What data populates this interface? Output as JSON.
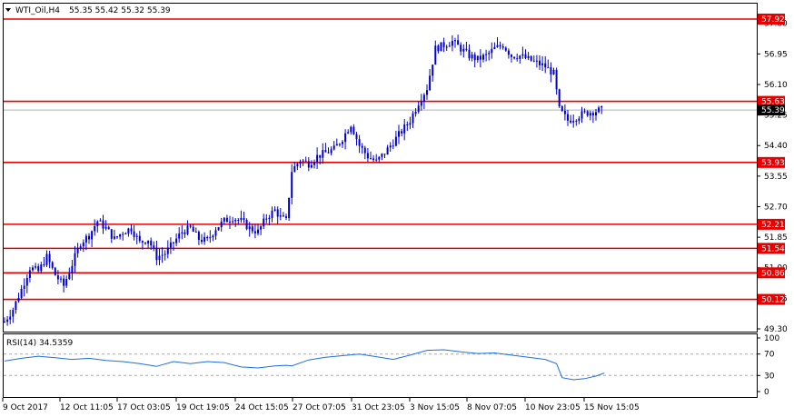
{
  "header": {
    "symbol": "WTI_Oil,H4",
    "ohlc": "55.35 55.42 55.32 55.39",
    "menu_icon": "triangle-down-icon"
  },
  "colors": {
    "candle": "#0000cc",
    "level_line": "#e60000",
    "level_tag": "#e60000",
    "current_tag": "#000000",
    "rsi_line": "#1f6fe0",
    "rsi_level": "#a9a9a9",
    "frame": "#000000"
  },
  "chart_data": [
    {
      "type": "candlestick",
      "title": "",
      "symbol": "WTI_Oil",
      "timeframe": "H4",
      "ylim": [
        49.1,
        58.1
      ],
      "y_ticks": [
        "57.80",
        "56.95",
        "56.10",
        "55.25",
        "54.40",
        "53.55",
        "52.70",
        "51.85",
        "51.00",
        "50.15",
        "49.30"
      ],
      "x_labels": [
        "9 Oct 2017",
        "12 Oct 11:05",
        "17 Oct 03:05",
        "19 Oct 19:05",
        "24 Oct 15:05",
        "27 Oct 07:05",
        "31 Oct 23:05",
        "3 Nov 15:05",
        "8 Nov 07:05",
        "10 Nov 23:05",
        "15 Nov 15:05"
      ],
      "horizontal_levels": [
        57.92,
        55.63,
        53.93,
        52.21,
        51.54,
        50.86,
        50.12
      ],
      "level_labels": [
        "57.92",
        "55.63",
        "53.93",
        "52.21",
        "51.54",
        "50.86",
        "50.12"
      ],
      "current_price": 55.39,
      "current_label": "55.39",
      "close_path": [
        [
          0,
          49.5
        ],
        [
          3,
          49.85
        ],
        [
          6,
          50.4
        ],
        [
          9,
          51.0
        ],
        [
          12,
          50.9
        ],
        [
          15,
          51.3
        ],
        [
          18,
          50.8
        ],
        [
          21,
          50.5
        ],
        [
          24,
          51.1
        ],
        [
          27,
          51.7
        ],
        [
          30,
          51.9
        ],
        [
          33,
          52.3
        ],
        [
          36,
          52.1
        ],
        [
          39,
          51.8
        ],
        [
          42,
          52.0
        ],
        [
          45,
          52.1
        ],
        [
          48,
          51.7
        ],
        [
          51,
          51.8
        ],
        [
          54,
          51.3
        ],
        [
          57,
          51.4
        ],
        [
          60,
          51.7
        ],
        [
          63,
          52.0
        ],
        [
          66,
          52.1
        ],
        [
          69,
          51.8
        ],
        [
          72,
          51.75
        ],
        [
          75,
          52.1
        ],
        [
          78,
          52.3
        ],
        [
          81,
          52.4
        ],
        [
          84,
          52.3
        ],
        [
          87,
          52.1
        ],
        [
          90,
          52.0
        ],
        [
          93,
          52.4
        ],
        [
          96,
          52.6
        ],
        [
          98,
          52.4
        ],
        [
          100,
          52.3
        ],
        [
          102,
          53.7
        ],
        [
          105,
          54.0
        ],
        [
          108,
          53.9
        ],
        [
          111,
          54.1
        ],
        [
          114,
          54.2
        ],
        [
          117,
          54.3
        ],
        [
          120,
          54.6
        ],
        [
          123,
          55.0
        ],
        [
          126,
          54.4
        ],
        [
          129,
          54.1
        ],
        [
          132,
          53.95
        ],
        [
          135,
          54.2
        ],
        [
          138,
          54.5
        ],
        [
          141,
          54.8
        ],
        [
          144,
          55.1
        ],
        [
          147,
          55.6
        ],
        [
          150,
          56.0
        ],
        [
          153,
          57.1
        ],
        [
          156,
          57.2
        ],
        [
          159,
          57.3
        ],
        [
          162,
          57.1
        ],
        [
          165,
          56.9
        ],
        [
          168,
          56.8
        ],
        [
          171,
          56.9
        ],
        [
          174,
          57.1
        ],
        [
          177,
          57.2
        ],
        [
          180,
          56.9
        ],
        [
          183,
          56.9
        ],
        [
          186,
          56.8
        ],
        [
          189,
          56.7
        ],
        [
          192,
          56.6
        ],
        [
          195,
          56.4
        ],
        [
          197,
          55.4
        ],
        [
          200,
          55.1
        ],
        [
          203,
          55.2
        ],
        [
          206,
          55.3
        ],
        [
          209,
          55.35
        ],
        [
          212,
          55.39
        ]
      ]
    },
    {
      "type": "line",
      "title": "",
      "label_name": "RSI(14)",
      "label_value": "34.5359",
      "ylim": [
        0,
        100
      ],
      "y_ticks": [
        "100",
        "70",
        "30",
        "0"
      ],
      "levels": [
        70,
        30
      ],
      "points": [
        [
          0,
          57
        ],
        [
          6,
          62
        ],
        [
          12,
          66
        ],
        [
          18,
          63
        ],
        [
          24,
          60
        ],
        [
          30,
          62
        ],
        [
          36,
          58
        ],
        [
          42,
          56
        ],
        [
          48,
          52
        ],
        [
          54,
          47
        ],
        [
          60,
          56
        ],
        [
          66,
          52
        ],
        [
          72,
          56
        ],
        [
          78,
          54
        ],
        [
          84,
          46
        ],
        [
          90,
          44
        ],
        [
          96,
          48
        ],
        [
          100,
          49
        ],
        [
          102,
          48
        ],
        [
          108,
          59
        ],
        [
          114,
          64
        ],
        [
          120,
          67
        ],
        [
          126,
          70
        ],
        [
          132,
          65
        ],
        [
          138,
          60
        ],
        [
          144,
          68
        ],
        [
          150,
          77
        ],
        [
          156,
          78
        ],
        [
          162,
          74
        ],
        [
          168,
          71
        ],
        [
          174,
          72
        ],
        [
          180,
          68
        ],
        [
          186,
          64
        ],
        [
          192,
          60
        ],
        [
          196,
          52
        ],
        [
          198,
          26
        ],
        [
          202,
          22
        ],
        [
          206,
          24
        ],
        [
          210,
          29
        ],
        [
          213,
          34.5
        ]
      ]
    }
  ]
}
